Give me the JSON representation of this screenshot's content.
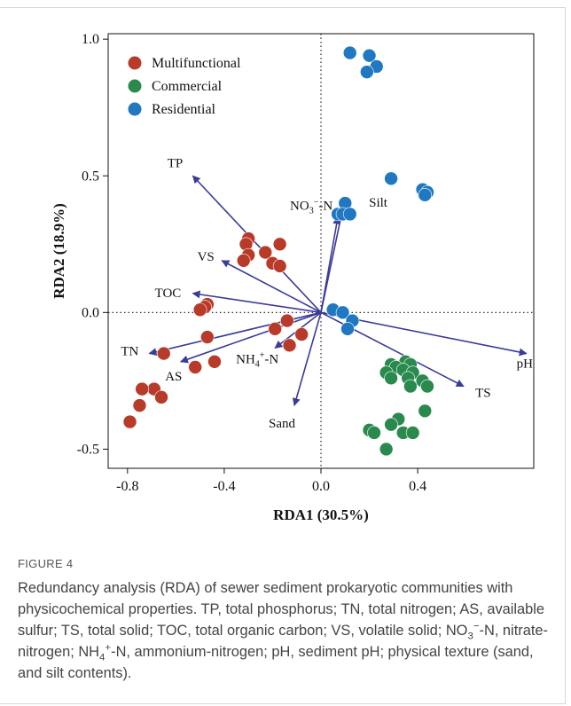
{
  "chart_data": {
    "type": "scatter",
    "subtype": "rda-biplot",
    "xlabel": "RDA1  (30.5%)",
    "ylabel": "RDA2  (18.9%)",
    "xlim": [
      -0.88,
      0.88
    ],
    "ylim": [
      -0.57,
      1.02
    ],
    "x_ticks": [
      -0.8,
      -0.4,
      0.0,
      0.4
    ],
    "x_tick_labels": [
      "-0.8",
      "-0.4",
      "0.0",
      "0.4"
    ],
    "y_ticks": [
      -0.5,
      0.0,
      0.5,
      1.0
    ],
    "y_tick_labels": [
      "-0.5",
      "0.0",
      "0.5",
      "1.0"
    ],
    "zero_lines": "dotted",
    "legend_position": "top-left",
    "series": [
      {
        "name": "Multifunctional",
        "color": "#b83a28",
        "points": [
          [
            -0.3,
            0.27
          ],
          [
            -0.31,
            0.25
          ],
          [
            -0.23,
            0.22
          ],
          [
            -0.17,
            0.25
          ],
          [
            -0.3,
            0.21
          ],
          [
            -0.32,
            0.19
          ],
          [
            -0.2,
            0.18
          ],
          [
            -0.17,
            0.17
          ],
          [
            -0.47,
            0.03
          ],
          [
            -0.48,
            0.02
          ],
          [
            -0.5,
            0.01
          ],
          [
            -0.14,
            -0.03
          ],
          [
            -0.19,
            -0.06
          ],
          [
            -0.08,
            -0.08
          ],
          [
            -0.13,
            -0.12
          ],
          [
            -0.47,
            -0.09
          ],
          [
            -0.65,
            -0.15
          ],
          [
            -0.44,
            -0.18
          ],
          [
            -0.52,
            -0.2
          ],
          [
            -0.69,
            -0.28
          ],
          [
            -0.74,
            -0.28
          ],
          [
            -0.66,
            -0.31
          ],
          [
            -0.75,
            -0.34
          ],
          [
            -0.79,
            -0.4
          ]
        ]
      },
      {
        "name": "Commercial",
        "color": "#2a8a4e",
        "points": [
          [
            0.29,
            -0.19
          ],
          [
            0.35,
            -0.18
          ],
          [
            0.37,
            -0.19
          ],
          [
            0.31,
            -0.2
          ],
          [
            0.34,
            -0.21
          ],
          [
            0.38,
            -0.22
          ],
          [
            0.27,
            -0.22
          ],
          [
            0.42,
            -0.25
          ],
          [
            0.36,
            -0.24
          ],
          [
            0.29,
            -0.24
          ],
          [
            0.44,
            -0.27
          ],
          [
            0.37,
            -0.27
          ],
          [
            0.43,
            -0.36
          ],
          [
            0.32,
            -0.39
          ],
          [
            0.29,
            -0.41
          ],
          [
            0.2,
            -0.43
          ],
          [
            0.22,
            -0.44
          ],
          [
            0.34,
            -0.44
          ],
          [
            0.38,
            -0.44
          ],
          [
            0.27,
            -0.5
          ]
        ]
      },
      {
        "name": "Residential",
        "color": "#1f78c1",
        "points": [
          [
            0.12,
            0.95
          ],
          [
            0.2,
            0.94
          ],
          [
            0.23,
            0.9
          ],
          [
            0.19,
            0.88
          ],
          [
            0.29,
            0.49
          ],
          [
            0.42,
            0.45
          ],
          [
            0.44,
            0.44
          ],
          [
            0.43,
            0.43
          ],
          [
            0.1,
            0.4
          ],
          [
            0.07,
            0.36
          ],
          [
            0.09,
            0.36
          ],
          [
            0.12,
            0.36
          ],
          [
            0.05,
            0.01
          ],
          [
            0.09,
            0.0
          ],
          [
            0.13,
            -0.03
          ],
          [
            0.11,
            -0.06
          ]
        ]
      }
    ],
    "arrow_color": "#3b3b9a",
    "arrows": [
      {
        "label": "TP",
        "x": -0.53,
        "y": 0.5
      },
      {
        "label": "VS",
        "x": -0.41,
        "y": 0.19
      },
      {
        "label": "TOC",
        "x": -0.53,
        "y": 0.07
      },
      {
        "label": "TN",
        "x": -0.71,
        "y": -0.15
      },
      {
        "label": "AS",
        "x": -0.58,
        "y": -0.18
      },
      {
        "label": "NH4+-N",
        "x": -0.19,
        "y": -0.13
      },
      {
        "label": "Sand",
        "x": -0.11,
        "y": -0.34
      },
      {
        "label": "NO3--N",
        "x": 0.07,
        "y": 0.35
      },
      {
        "label": "Silt",
        "x": 0.09,
        "y": 0.38
      },
      {
        "label": "pH",
        "x": 0.85,
        "y": -0.15
      },
      {
        "label": "TS",
        "x": 0.59,
        "y": -0.27
      }
    ]
  },
  "caption": {
    "figure_label": "FIGURE 4",
    "text_html": "Redundancy analysis (RDA) of sewer sediment prokaryotic communities with physicochemical properties. TP, total phosphorus; TN, total nitrogen; AS, available sulfur; TS, total solid; TOC, total organic carbon; VS, volatile solid; NO<sub>3</sub><sup>−</sup>-N, nitrate-nitrogen; NH<sub>4</sub><sup>+</sup>-N, ammonium-nitrogen; pH, sediment pH; physical texture (sand, and silt contents)."
  }
}
